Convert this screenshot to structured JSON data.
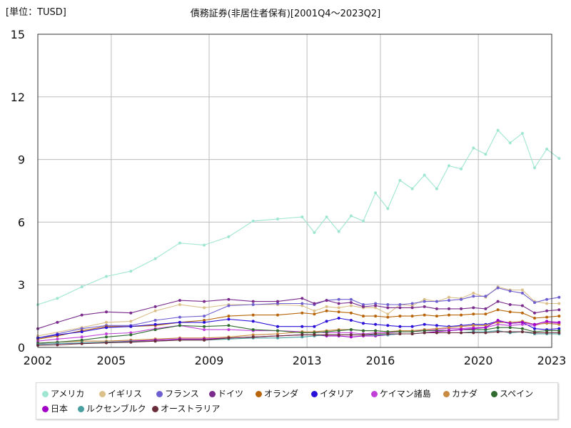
{
  "unit_label": "[単位：TUSD]",
  "chart_data": {
    "type": "line",
    "title": "債務証券(非居住者保有)[2001Q4～2023Q2]",
    "xlabel": "",
    "ylabel": "",
    "xlim": [
      2002,
      2023
    ],
    "ylim": [
      0,
      15
    ],
    "xticks": [
      2002,
      2005,
      2009,
      2013,
      2016,
      2020,
      2023
    ],
    "yticks": [
      0,
      3,
      6,
      9,
      12,
      15
    ],
    "grid": true,
    "legend_position": "bottom",
    "series": [
      {
        "name": "アメリカ",
        "color": "#9fe6d2",
        "x": [
          2002,
          2002.8,
          2003.8,
          2004.8,
          2005.8,
          2006.8,
          2007.8,
          2008.8,
          2009.8,
          2010.8,
          2011.8,
          2012.8,
          2013.3,
          2013.8,
          2014.3,
          2014.8,
          2015.3,
          2015.8,
          2016.3,
          2016.8,
          2017.3,
          2017.8,
          2018.3,
          2018.8,
          2019.3,
          2019.8,
          2020.3,
          2020.8,
          2021.3,
          2021.8,
          2022.3,
          2022.8,
          2023.3
        ],
        "y": [
          2.05,
          2.35,
          2.9,
          3.4,
          3.65,
          4.25,
          5.0,
          4.9,
          5.3,
          6.05,
          6.15,
          6.25,
          5.5,
          6.25,
          5.55,
          6.3,
          6.05,
          7.4,
          6.65,
          8.0,
          7.6,
          8.25,
          7.6,
          8.7,
          8.55,
          9.55,
          9.25,
          10.4,
          9.8,
          10.25,
          8.6,
          9.5,
          9.05
        ]
      },
      {
        "name": "イギリス",
        "color": "#dcc08a",
        "x": [
          2002,
          2003.8,
          2004.8,
          2005.8,
          2006.8,
          2007.8,
          2008.8,
          2009.8,
          2010.8,
          2011.8,
          2012.8,
          2013.3,
          2013.8,
          2014.3,
          2014.8,
          2015.3,
          2015.8,
          2016.3,
          2016.8,
          2017.3,
          2017.8,
          2018.3,
          2018.8,
          2019.3,
          2019.8,
          2020.3,
          2020.8,
          2021.3,
          2021.8,
          2022.3,
          2022.8,
          2023.3
        ],
        "y": [
          0.55,
          0.95,
          1.2,
          1.25,
          1.75,
          2.05,
          1.9,
          2.05,
          2.05,
          2.05,
          2.0,
          1.75,
          1.95,
          1.9,
          2.0,
          1.9,
          1.9,
          1.6,
          2.05,
          2.0,
          2.3,
          2.2,
          2.4,
          2.35,
          2.6,
          2.4,
          2.9,
          2.75,
          2.75,
          2.2,
          2.1,
          2.1
        ]
      },
      {
        "name": "フランス",
        "color": "#6e5fd0",
        "x": [
          2002,
          2002.8,
          2003.8,
          2004.8,
          2005.8,
          2006.8,
          2007.8,
          2008.8,
          2009.8,
          2010.8,
          2011.8,
          2012.8,
          2013.3,
          2013.8,
          2014.3,
          2014.8,
          2015.3,
          2015.8,
          2016.3,
          2016.8,
          2017.3,
          2017.8,
          2018.3,
          2018.8,
          2019.3,
          2019.8,
          2020.3,
          2020.8,
          2021.3,
          2021.8,
          2022.3,
          2022.8,
          2023.3
        ],
        "y": [
          0.45,
          0.65,
          0.9,
          1.05,
          1.05,
          1.3,
          1.45,
          1.5,
          2.0,
          2.05,
          2.1,
          2.1,
          2.05,
          2.25,
          2.3,
          2.3,
          2.05,
          2.1,
          2.05,
          2.05,
          2.1,
          2.2,
          2.2,
          2.25,
          2.3,
          2.45,
          2.45,
          2.85,
          2.7,
          2.6,
          2.15,
          2.3,
          2.4
        ]
      },
      {
        "name": "ドイツ",
        "color": "#7a2b8c",
        "x": [
          2002,
          2002.8,
          2003.8,
          2004.8,
          2005.8,
          2006.8,
          2007.8,
          2008.8,
          2009.8,
          2010.8,
          2011.8,
          2012.8,
          2013.3,
          2013.8,
          2014.3,
          2014.8,
          2015.3,
          2015.8,
          2016.3,
          2016.8,
          2017.3,
          2017.8,
          2018.3,
          2018.8,
          2019.3,
          2019.8,
          2020.3,
          2020.8,
          2021.3,
          2021.8,
          2022.3,
          2022.8,
          2023.3
        ],
        "y": [
          0.9,
          1.2,
          1.55,
          1.7,
          1.65,
          1.95,
          2.25,
          2.2,
          2.3,
          2.2,
          2.2,
          2.35,
          2.1,
          2.25,
          2.1,
          2.15,
          1.95,
          2.0,
          1.9,
          1.9,
          1.9,
          1.95,
          1.85,
          1.85,
          1.85,
          1.9,
          1.85,
          2.2,
          2.05,
          2.0,
          1.65,
          1.75,
          1.8
        ]
      },
      {
        "name": "オランダ",
        "color": "#b8650a",
        "x": [
          2002,
          2002.8,
          2003.8,
          2004.8,
          2005.8,
          2006.8,
          2007.8,
          2008.8,
          2009.8,
          2010.8,
          2011.8,
          2012.8,
          2013.3,
          2013.8,
          2014.3,
          2014.8,
          2015.3,
          2015.8,
          2016.3,
          2016.8,
          2017.3,
          2017.8,
          2018.3,
          2018.8,
          2019.3,
          2019.8,
          2020.3,
          2020.8,
          2021.3,
          2021.8,
          2022.3,
          2022.8,
          2023.3
        ],
        "y": [
          0.4,
          0.55,
          0.8,
          1.0,
          1.0,
          1.05,
          1.2,
          1.3,
          1.5,
          1.55,
          1.55,
          1.65,
          1.6,
          1.75,
          1.7,
          1.65,
          1.5,
          1.5,
          1.45,
          1.5,
          1.5,
          1.55,
          1.5,
          1.55,
          1.55,
          1.6,
          1.6,
          1.8,
          1.7,
          1.65,
          1.4,
          1.45,
          1.5
        ]
      },
      {
        "name": "イタリア",
        "color": "#2a10d8",
        "x": [
          2002,
          2002.8,
          2003.8,
          2004.8,
          2005.8,
          2006.8,
          2007.8,
          2008.8,
          2009.8,
          2010.8,
          2011.8,
          2012.8,
          2013.3,
          2013.8,
          2014.3,
          2014.8,
          2015.3,
          2015.8,
          2016.3,
          2016.8,
          2017.3,
          2017.8,
          2018.3,
          2018.8,
          2019.3,
          2019.8,
          2020.3,
          2020.8,
          2021.3,
          2021.8,
          2022.3,
          2022.8,
          2023.3
        ],
        "y": [
          0.45,
          0.6,
          0.75,
          0.95,
          1.0,
          1.1,
          1.2,
          1.2,
          1.35,
          1.25,
          1.0,
          1.0,
          1.0,
          1.25,
          1.4,
          1.3,
          1.15,
          1.1,
          1.05,
          1.0,
          1.0,
          1.1,
          1.05,
          1.0,
          1.05,
          1.1,
          1.1,
          1.25,
          1.15,
          1.2,
          0.9,
          0.85,
          0.9
        ]
      },
      {
        "name": "ケイマン諸島",
        "color": "#c040d8",
        "x": [
          2002,
          2002.8,
          2003.8,
          2004.8,
          2005.8,
          2006.8,
          2007.8,
          2008.8,
          2009.8,
          2010.8,
          2011.8,
          2012.8,
          2013.3,
          2013.8,
          2014.3,
          2014.8,
          2015.3,
          2015.8,
          2016.3,
          2016.8,
          2017.3,
          2017.8,
          2018.3,
          2018.8,
          2019.3,
          2019.8,
          2020.3,
          2020.8,
          2021.3,
          2021.8,
          2022.3,
          2022.8,
          2023.3
        ],
        "y": [
          0.3,
          0.4,
          0.5,
          0.65,
          0.7,
          0.9,
          1.05,
          0.85,
          0.85,
          0.8,
          0.8,
          0.75,
          0.75,
          0.7,
          0.7,
          0.7,
          0.65,
          0.7,
          0.7,
          0.75,
          0.75,
          0.85,
          0.85,
          0.9,
          0.9,
          0.95,
          0.95,
          1.1,
          1.05,
          1.1,
          1.05,
          1.2,
          1.15
        ]
      },
      {
        "name": "カナダ",
        "color": "#c88a40",
        "x": [
          2002,
          2002.8,
          2003.8,
          2004.8,
          2005.8,
          2006.8,
          2007.8,
          2008.8,
          2009.8,
          2010.8,
          2011.8,
          2012.8,
          2013.3,
          2013.8,
          2014.3,
          2014.8,
          2015.3,
          2015.8,
          2016.3,
          2016.8,
          2017.3,
          2017.8,
          2018.3,
          2018.8,
          2019.3,
          2019.8,
          2020.3,
          2020.8,
          2021.3,
          2021.8,
          2022.3,
          2022.8,
          2023.3
        ],
        "y": [
          0.2,
          0.25,
          0.3,
          0.3,
          0.35,
          0.4,
          0.45,
          0.45,
          0.5,
          0.6,
          0.65,
          0.75,
          0.75,
          0.8,
          0.85,
          0.85,
          0.8,
          0.8,
          0.75,
          0.8,
          0.8,
          0.85,
          0.9,
          0.95,
          1.0,
          1.05,
          1.05,
          1.2,
          1.2,
          1.25,
          1.1,
          1.15,
          1.1
        ]
      },
      {
        "name": "スペイン",
        "color": "#2f6a2f",
        "x": [
          2002,
          2002.8,
          2003.8,
          2004.8,
          2005.8,
          2006.8,
          2007.8,
          2008.8,
          2009.8,
          2010.8,
          2011.8,
          2012.8,
          2013.3,
          2013.8,
          2014.3,
          2014.8,
          2015.3,
          2015.8,
          2016.3,
          2016.8,
          2017.3,
          2017.8,
          2018.3,
          2018.8,
          2019.3,
          2019.8,
          2020.3,
          2020.8,
          2021.3,
          2021.8,
          2022.3,
          2022.8,
          2023.3
        ],
        "y": [
          0.2,
          0.25,
          0.35,
          0.5,
          0.6,
          0.85,
          1.05,
          1.0,
          1.05,
          0.85,
          0.8,
          0.7,
          0.7,
          0.75,
          0.8,
          0.85,
          0.8,
          0.8,
          0.75,
          0.75,
          0.75,
          0.8,
          0.8,
          0.8,
          0.85,
          0.85,
          0.85,
          0.95,
          0.95,
          0.9,
          0.75,
          0.8,
          0.8
        ]
      },
      {
        "name": "日本",
        "color": "#a000c8",
        "x": [
          2002,
          2002.8,
          2003.8,
          2004.8,
          2005.8,
          2006.8,
          2007.8,
          2008.8,
          2009.8,
          2010.8,
          2011.8,
          2012.8,
          2013.3,
          2013.8,
          2014.3,
          2014.8,
          2015.3,
          2015.8,
          2016.3,
          2016.8,
          2017.3,
          2017.8,
          2018.3,
          2018.8,
          2019.3,
          2019.8,
          2020.3,
          2020.8,
          2021.3,
          2021.8,
          2022.3,
          2022.8,
          2023.3
        ],
        "y": [
          0.15,
          0.18,
          0.2,
          0.25,
          0.3,
          0.35,
          0.4,
          0.4,
          0.45,
          0.5,
          0.55,
          0.6,
          0.6,
          0.55,
          0.55,
          0.5,
          0.55,
          0.55,
          0.6,
          0.65,
          0.65,
          0.7,
          0.75,
          0.8,
          0.85,
          0.9,
          0.95,
          1.3,
          1.15,
          1.2,
          1.1,
          1.25,
          1.2
        ]
      },
      {
        "name": "ルクセンブルク",
        "color": "#4aa0a0",
        "x": [
          2002,
          2002.8,
          2003.8,
          2004.8,
          2005.8,
          2006.8,
          2007.8,
          2008.8,
          2009.8,
          2010.8,
          2011.8,
          2012.8,
          2013.3,
          2013.8,
          2014.3,
          2014.8,
          2015.3,
          2015.8,
          2016.3,
          2016.8,
          2017.3,
          2017.8,
          2018.3,
          2018.8,
          2019.3,
          2019.8,
          2020.3,
          2020.8,
          2021.3,
          2021.8,
          2022.3,
          2022.8,
          2023.3
        ],
        "y": [
          0.15,
          0.18,
          0.22,
          0.25,
          0.28,
          0.3,
          0.35,
          0.35,
          0.4,
          0.45,
          0.45,
          0.5,
          0.55,
          0.6,
          0.6,
          0.6,
          0.6,
          0.6,
          0.6,
          0.65,
          0.65,
          0.7,
          0.7,
          0.7,
          0.7,
          0.75,
          0.75,
          0.8,
          0.7,
          0.75,
          0.65,
          0.65,
          0.65
        ]
      },
      {
        "name": "オーストラリア",
        "color": "#6b2c3a",
        "x": [
          2002,
          2002.8,
          2003.8,
          2004.8,
          2005.8,
          2006.8,
          2007.8,
          2008.8,
          2009.8,
          2010.8,
          2011.8,
          2012.8,
          2013.3,
          2013.8,
          2014.3,
          2014.8,
          2015.3,
          2015.8,
          2016.3,
          2016.8,
          2017.3,
          2017.8,
          2018.3,
          2018.8,
          2019.3,
          2019.8,
          2020.3,
          2020.8,
          2021.3,
          2021.8,
          2022.3,
          2022.8,
          2023.3
        ],
        "y": [
          0.1,
          0.12,
          0.18,
          0.22,
          0.25,
          0.3,
          0.35,
          0.35,
          0.45,
          0.5,
          0.55,
          0.6,
          0.6,
          0.6,
          0.6,
          0.6,
          0.6,
          0.65,
          0.65,
          0.65,
          0.65,
          0.7,
          0.7,
          0.7,
          0.7,
          0.7,
          0.7,
          0.75,
          0.75,
          0.75,
          0.7,
          0.7,
          0.7
        ]
      }
    ]
  }
}
